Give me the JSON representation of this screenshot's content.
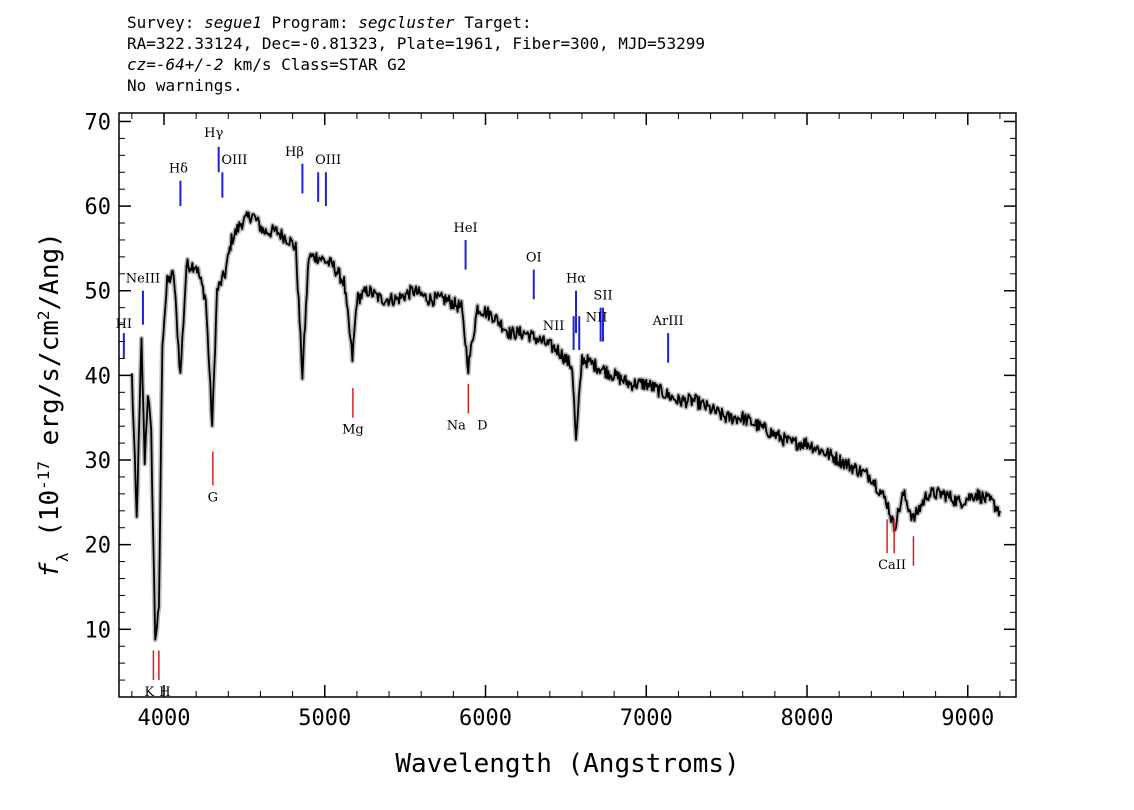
{
  "header": {
    "line1": {
      "survey_label": "Survey:",
      "survey": "segue1",
      "program_label": "Program:",
      "program": "segcluster",
      "target_label": "Target:"
    },
    "line2": "RA=322.33124, Dec=-0.81323, Plate=1961, Fiber=300, MJD=53299",
    "line3": {
      "cz": "cz=-64+/-2",
      "rest": " km/s Class=STAR G2"
    },
    "line4": "No warnings."
  },
  "chart_data": {
    "type": "line",
    "xlabel": "Wavelength (Angstroms)",
    "ylabel": "f_λ (10^-17 erg/s/cm^2/Ang)",
    "xlim": [
      3720,
      9300
    ],
    "ylim": [
      2,
      71
    ],
    "xticks": [
      4000,
      5000,
      6000,
      7000,
      8000,
      9000
    ],
    "yticks": [
      10,
      20,
      30,
      40,
      50,
      60,
      70
    ],
    "grid": false,
    "colors": {
      "flux": "#000000",
      "error_band": "#bdbdbd",
      "emission": "#1f1fd6",
      "absorption": "#d62020"
    },
    "series": [
      {
        "name": "",
        "x": [
          3800,
          3830,
          3860,
          3880,
          3900,
          3920,
          3945,
          3968,
          3990,
          4020,
          4060,
          4102,
          4140,
          4200,
          4260,
          4300,
          4330,
          4380,
          4420,
          4480,
          4550,
          4620,
          4700,
          4780,
          4820,
          4861,
          4900,
          4960,
          5050,
          5120,
          5172,
          5200,
          5270,
          5350,
          5450,
          5550,
          5650,
          5750,
          5850,
          5893,
          5950,
          6050,
          6150,
          6250,
          6350,
          6450,
          6540,
          6563,
          6600,
          6700,
          6800,
          6900,
          7000,
          7100,
          7200,
          7300,
          7400,
          7500,
          7600,
          7700,
          7800,
          7900,
          8000,
          8100,
          8200,
          8300,
          8400,
          8498,
          8542,
          8600,
          8662,
          8750,
          8850,
          8950,
          9050,
          9150,
          9200
        ],
        "y": [
          40,
          23,
          44,
          30,
          38,
          33,
          9,
          12,
          44,
          51,
          52,
          40,
          53,
          53,
          49,
          34,
          50,
          52,
          56,
          58,
          59,
          57,
          57,
          56,
          55,
          40,
          54,
          54,
          53,
          51,
          42,
          49,
          50,
          49,
          49,
          50,
          49,
          49,
          48,
          41,
          48,
          47,
          45,
          45,
          44,
          43,
          41,
          32,
          42,
          41,
          40,
          39,
          39,
          38,
          37,
          37,
          36,
          35,
          35,
          34,
          33,
          32,
          32,
          31,
          30,
          29,
          28,
          25,
          22,
          26,
          23,
          26,
          26,
          25,
          26,
          25,
          24
        ]
      }
    ],
    "emission_lines": [
      {
        "label": "HI",
        "wavelength": 3750,
        "flux_top": 45,
        "flux_bottom": 42
      },
      {
        "label": "NeIII",
        "wavelength": 3869,
        "flux_top": 50,
        "flux_bottom": 46
      },
      {
        "label": "Hδ",
        "wavelength": 4102,
        "flux_top": 63,
        "flux_bottom": 60
      },
      {
        "label": "Hγ",
        "wavelength": 4340,
        "flux_top": 67,
        "flux_bottom": 64
      },
      {
        "label": "OIII",
        "wavelength": 4363,
        "flux_top": 64,
        "flux_bottom": 61
      },
      {
        "label": "Hβ",
        "wavelength": 4861,
        "flux_top": 65,
        "flux_bottom": 61.5
      },
      {
        "label": "OIII",
        "wavelength": 4959,
        "flux_top": 64,
        "flux_bottom": 60.5
      },
      {
        "label": "",
        "wavelength": 5007,
        "flux_top": 64,
        "flux_bottom": 60
      },
      {
        "label": "HeI",
        "wavelength": 5876,
        "flux_top": 56,
        "flux_bottom": 52.5
      },
      {
        "label": "OI",
        "wavelength": 6300,
        "flux_top": 52.5,
        "flux_bottom": 49
      },
      {
        "label": "NII",
        "wavelength": 6548,
        "flux_top": 47,
        "flux_bottom": 43
      },
      {
        "label": "Hα",
        "wavelength": 6563,
        "flux_top": 50,
        "flux_bottom": 45
      },
      {
        "label": "",
        "wavelength": 6583,
        "flux_top": 47,
        "flux_bottom": 43
      },
      {
        "label": "NII",
        "wavelength": 6716,
        "flux_top": 48,
        "flux_bottom": 44
      },
      {
        "label": "SII",
        "wavelength": 6731,
        "flux_top": 48,
        "flux_bottom": 44
      },
      {
        "label": "ArIII",
        "wavelength": 7136,
        "flux_top": 45,
        "flux_bottom": 41.5
      }
    ],
    "absorption_lines": [
      {
        "label": "K",
        "wavelength": 3934,
        "flux_top": 7.5,
        "flux_bottom": 4
      },
      {
        "label": "H",
        "wavelength": 3968,
        "flux_top": 7.5,
        "flux_bottom": 4
      },
      {
        "label": "G",
        "wavelength": 4304,
        "flux_top": 31,
        "flux_bottom": 27
      },
      {
        "label": "Mg",
        "wavelength": 5175,
        "flux_top": 38.5,
        "flux_bottom": 35
      },
      {
        "label": "Na",
        "wavelength": 5893,
        "flux_top": 39,
        "flux_bottom": 35.5
      },
      {
        "label": "D",
        "wavelength": 5893,
        "flux_top": null,
        "flux_bottom": null
      },
      {
        "label": "CaII",
        "wavelength": 8498,
        "flux_top": 23,
        "flux_bottom": 19
      },
      {
        "label": "",
        "wavelength": 8542,
        "flux_top": 23,
        "flux_bottom": 19
      },
      {
        "label": "",
        "wavelength": 8662,
        "flux_top": 21,
        "flux_bottom": 17.5
      }
    ]
  }
}
